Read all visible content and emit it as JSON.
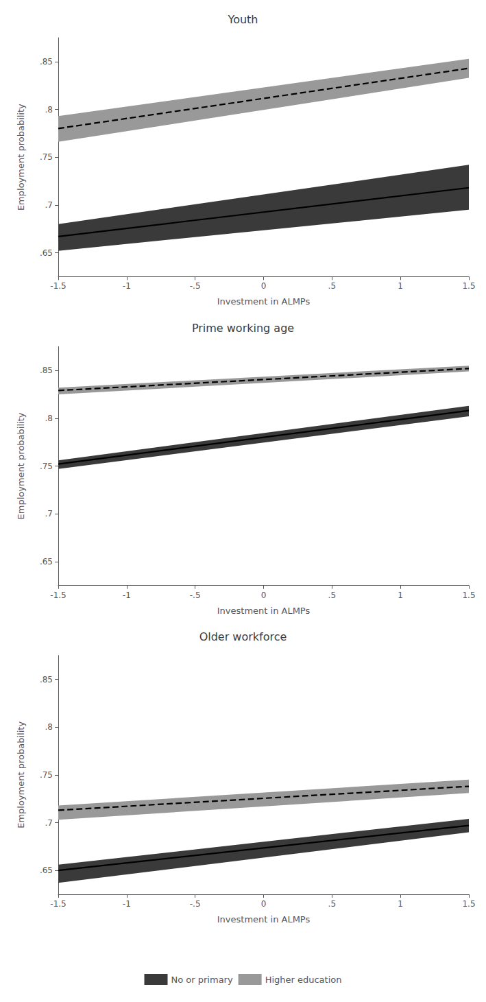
{
  "chart_data": [
    {
      "type": "line",
      "title": "Youth",
      "xlabel": "Investment in ALMPs",
      "ylabel": "Employment probability",
      "x": [
        -1.5,
        1.5
      ],
      "xlim": [
        -1.5,
        1.5
      ],
      "xticks": [
        -1.5,
        -1,
        {
          "value": -0.5,
          "label": "-.5"
        },
        0,
        {
          "value": 0.5,
          "label": ".5"
        },
        1,
        1.5
      ],
      "ylim": [
        0.625,
        0.875
      ],
      "yticks": [
        {
          "value": 0.65,
          "label": ".65"
        },
        {
          "value": 0.7,
          "label": ".7"
        },
        {
          "value": 0.75,
          "label": ".75"
        },
        {
          "value": 0.8,
          "label": ".8"
        },
        {
          "value": 0.85,
          "label": ".85"
        }
      ],
      "grid": false,
      "series": [
        {
          "name": "No or primary",
          "color": "#3a3a3a",
          "line_style": "solid",
          "values": [
            0.667,
            0.718
          ],
          "ci_lower": [
            0.652,
            0.695
          ],
          "ci_upper": [
            0.68,
            0.742
          ]
        },
        {
          "name": "Higher education",
          "color": "#999999",
          "line_style": "dashed",
          "values": [
            0.78,
            0.843
          ],
          "ci_lower": [
            0.766,
            0.833
          ],
          "ci_upper": [
            0.793,
            0.853
          ]
        }
      ]
    },
    {
      "type": "line",
      "title": "Prime working age",
      "xlabel": "Investment in ALMPs",
      "ylabel": "Employment probability",
      "x": [
        -1.5,
        1.5
      ],
      "xlim": [
        -1.5,
        1.5
      ],
      "xticks": [
        -1.5,
        -1,
        {
          "value": -0.5,
          "label": "-.5"
        },
        0,
        {
          "value": 0.5,
          "label": ".5"
        },
        1,
        1.5
      ],
      "ylim": [
        0.625,
        0.875
      ],
      "yticks": [
        {
          "value": 0.65,
          "label": ".65"
        },
        {
          "value": 0.7,
          "label": ".7"
        },
        {
          "value": 0.75,
          "label": ".75"
        },
        {
          "value": 0.8,
          "label": ".8"
        },
        {
          "value": 0.85,
          "label": ".85"
        }
      ],
      "grid": false,
      "series": [
        {
          "name": "No or primary",
          "color": "#3a3a3a",
          "line_style": "solid",
          "values": [
            0.752,
            0.808
          ],
          "ci_lower": [
            0.747,
            0.802
          ],
          "ci_upper": [
            0.756,
            0.813
          ]
        },
        {
          "name": "Higher education",
          "color": "#999999",
          "line_style": "dashed",
          "values": [
            0.829,
            0.852
          ],
          "ci_lower": [
            0.825,
            0.849
          ],
          "ci_upper": [
            0.832,
            0.855
          ]
        }
      ]
    },
    {
      "type": "line",
      "title": "Older workforce",
      "xlabel": "Investment in ALMPs",
      "ylabel": "Employment probability",
      "x": [
        -1.5,
        1.5
      ],
      "xlim": [
        -1.5,
        1.5
      ],
      "xticks": [
        -1.5,
        -1,
        {
          "value": -0.5,
          "label": "-.5"
        },
        0,
        {
          "value": 0.5,
          "label": ".5"
        },
        1,
        1.5
      ],
      "ylim": [
        0.625,
        0.875
      ],
      "yticks": [
        {
          "value": 0.65,
          "label": ".65"
        },
        {
          "value": 0.7,
          "label": ".7"
        },
        {
          "value": 0.75,
          "label": ".75"
        },
        {
          "value": 0.8,
          "label": ".8"
        },
        {
          "value": 0.85,
          "label": ".85"
        }
      ],
      "grid": false,
      "legend": "bottom",
      "series": [
        {
          "name": "No or primary",
          "color": "#3a3a3a",
          "line_style": "solid",
          "values": [
            0.65,
            0.697
          ],
          "ci_lower": [
            0.637,
            0.69
          ],
          "ci_upper": [
            0.656,
            0.704
          ]
        },
        {
          "name": "Higher education",
          "color": "#999999",
          "line_style": "dashed",
          "values": [
            0.713,
            0.738
          ],
          "ci_lower": [
            0.703,
            0.731
          ],
          "ci_upper": [
            0.718,
            0.745
          ]
        }
      ]
    }
  ]
}
